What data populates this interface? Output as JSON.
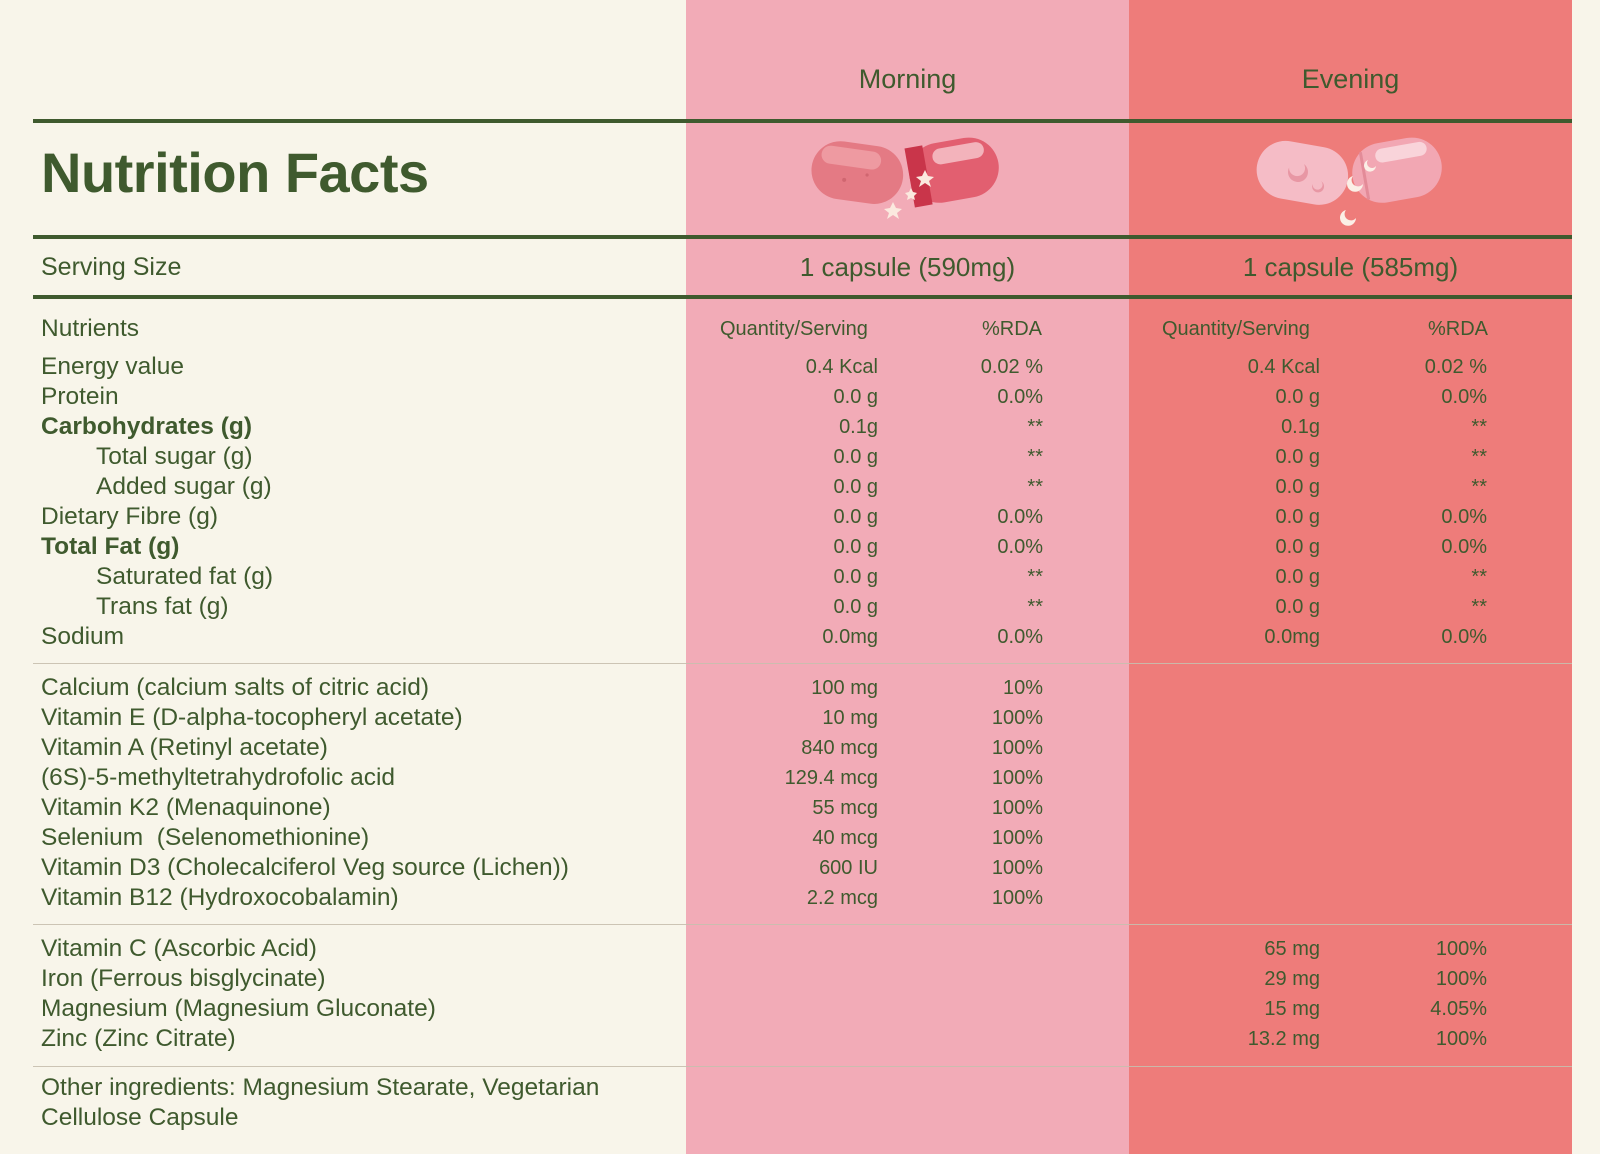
{
  "columns": {
    "morning": "Morning",
    "evening": "Evening"
  },
  "title": "Nutrition Facts",
  "serving": {
    "label": "Serving Size",
    "morning": "1 capsule (590mg)",
    "evening": "1 capsule (585mg)"
  },
  "nutrients_header": {
    "label": "Nutrients",
    "quantity": "Quantity/Serving",
    "rda": "%RDA"
  },
  "colors": {
    "morning": "#f2abb7",
    "evening": "#ee7c7a",
    "text": "#3f5a2e",
    "background": "#f8f5ea"
  },
  "icons": {
    "morning": "capsule-sparkle-icon",
    "evening": "capsule-moon-icon"
  },
  "section1": [
    {
      "name": "Energy value",
      "m_qty": "0.4 Kcal",
      "m_rda": "0.02 %",
      "e_qty": "0.4 Kcal",
      "e_rda": "0.02 %"
    },
    {
      "name": "Protein",
      "m_qty": "0.0 g",
      "m_rda": "0.0%",
      "e_qty": "0.0 g",
      "e_rda": "0.0%"
    },
    {
      "name": "Carbohydrates (g)",
      "m_qty": "0.1g",
      "m_rda": "**",
      "e_qty": "0.1g",
      "e_rda": "**"
    },
    {
      "name": "Total sugar (g)",
      "m_qty": "0.0 g",
      "m_rda": "**",
      "e_qty": "0.0 g",
      "e_rda": "**"
    },
    {
      "name": "Added sugar (g)",
      "m_qty": "0.0 g",
      "m_rda": "**",
      "e_qty": "0.0 g",
      "e_rda": "**"
    },
    {
      "name": "Dietary Fibre (g)",
      "m_qty": "0.0 g",
      "m_rda": "0.0%",
      "e_qty": "0.0 g",
      "e_rda": "0.0%"
    },
    {
      "name": "Total Fat (g)",
      "m_qty": "0.0 g",
      "m_rda": "0.0%",
      "e_qty": "0.0 g",
      "e_rda": "0.0%"
    },
    {
      "name": "Saturated fat (g)",
      "m_qty": "0.0 g",
      "m_rda": "**",
      "e_qty": "0.0 g",
      "e_rda": "**"
    },
    {
      "name": "Trans fat (g)",
      "m_qty": "0.0 g",
      "m_rda": "**",
      "e_qty": "0.0 g",
      "e_rda": "**"
    },
    {
      "name": "Sodium",
      "m_qty": "0.0mg",
      "m_rda": "0.0%",
      "e_qty": "0.0mg",
      "e_rda": "0.0%"
    }
  ],
  "section2": [
    {
      "name": "Calcium (calcium salts of citric acid)",
      "m_qty": "100 mg",
      "m_rda": "10%"
    },
    {
      "name": "Vitamin E (D-alpha-tocopheryl acetate)",
      "m_qty": "10 mg",
      "m_rda": "100%"
    },
    {
      "name": "Vitamin A (Retinyl acetate)",
      "m_qty": "840 mcg",
      "m_rda": "100%"
    },
    {
      "name": "(6S)-5-methyltetrahydrofolic acid",
      "m_qty": "129.4 mcg",
      "m_rda": "100%"
    },
    {
      "name": "Vitamin K2 (Menaquinone)",
      "m_qty": "55 mcg",
      "m_rda": "100%"
    },
    {
      "name": "Selenium  (Selenomethionine)",
      "m_qty": "40 mcg",
      "m_rda": "100%"
    },
    {
      "name": "Vitamin D3 (Cholecalciferol Veg source (Lichen))",
      "m_qty": "600 IU",
      "m_rda": "100%"
    },
    {
      "name": "Vitamin B12 (Hydroxocobalamin)",
      "m_qty": "2.2 mcg",
      "m_rda": "100%"
    }
  ],
  "section3": [
    {
      "name": "Vitamin C (Ascorbic Acid)",
      "e_qty": "65 mg",
      "e_rda": "100%"
    },
    {
      "name": "Iron (Ferrous bisglycinate)",
      "e_qty": "29 mg",
      "e_rda": "100%"
    },
    {
      "name": "Magnesium (Magnesium Gluconate)",
      "e_qty": "15 mg",
      "e_rda": "4.05%"
    },
    {
      "name": "Zinc (Zinc Citrate)",
      "e_qty": "13.2 mg",
      "e_rda": "100%"
    }
  ],
  "other_ingredients": {
    "line1": "Other ingredients: Magnesium Stearate, Vegetarian",
    "line2": "Cellulose Capsule"
  }
}
